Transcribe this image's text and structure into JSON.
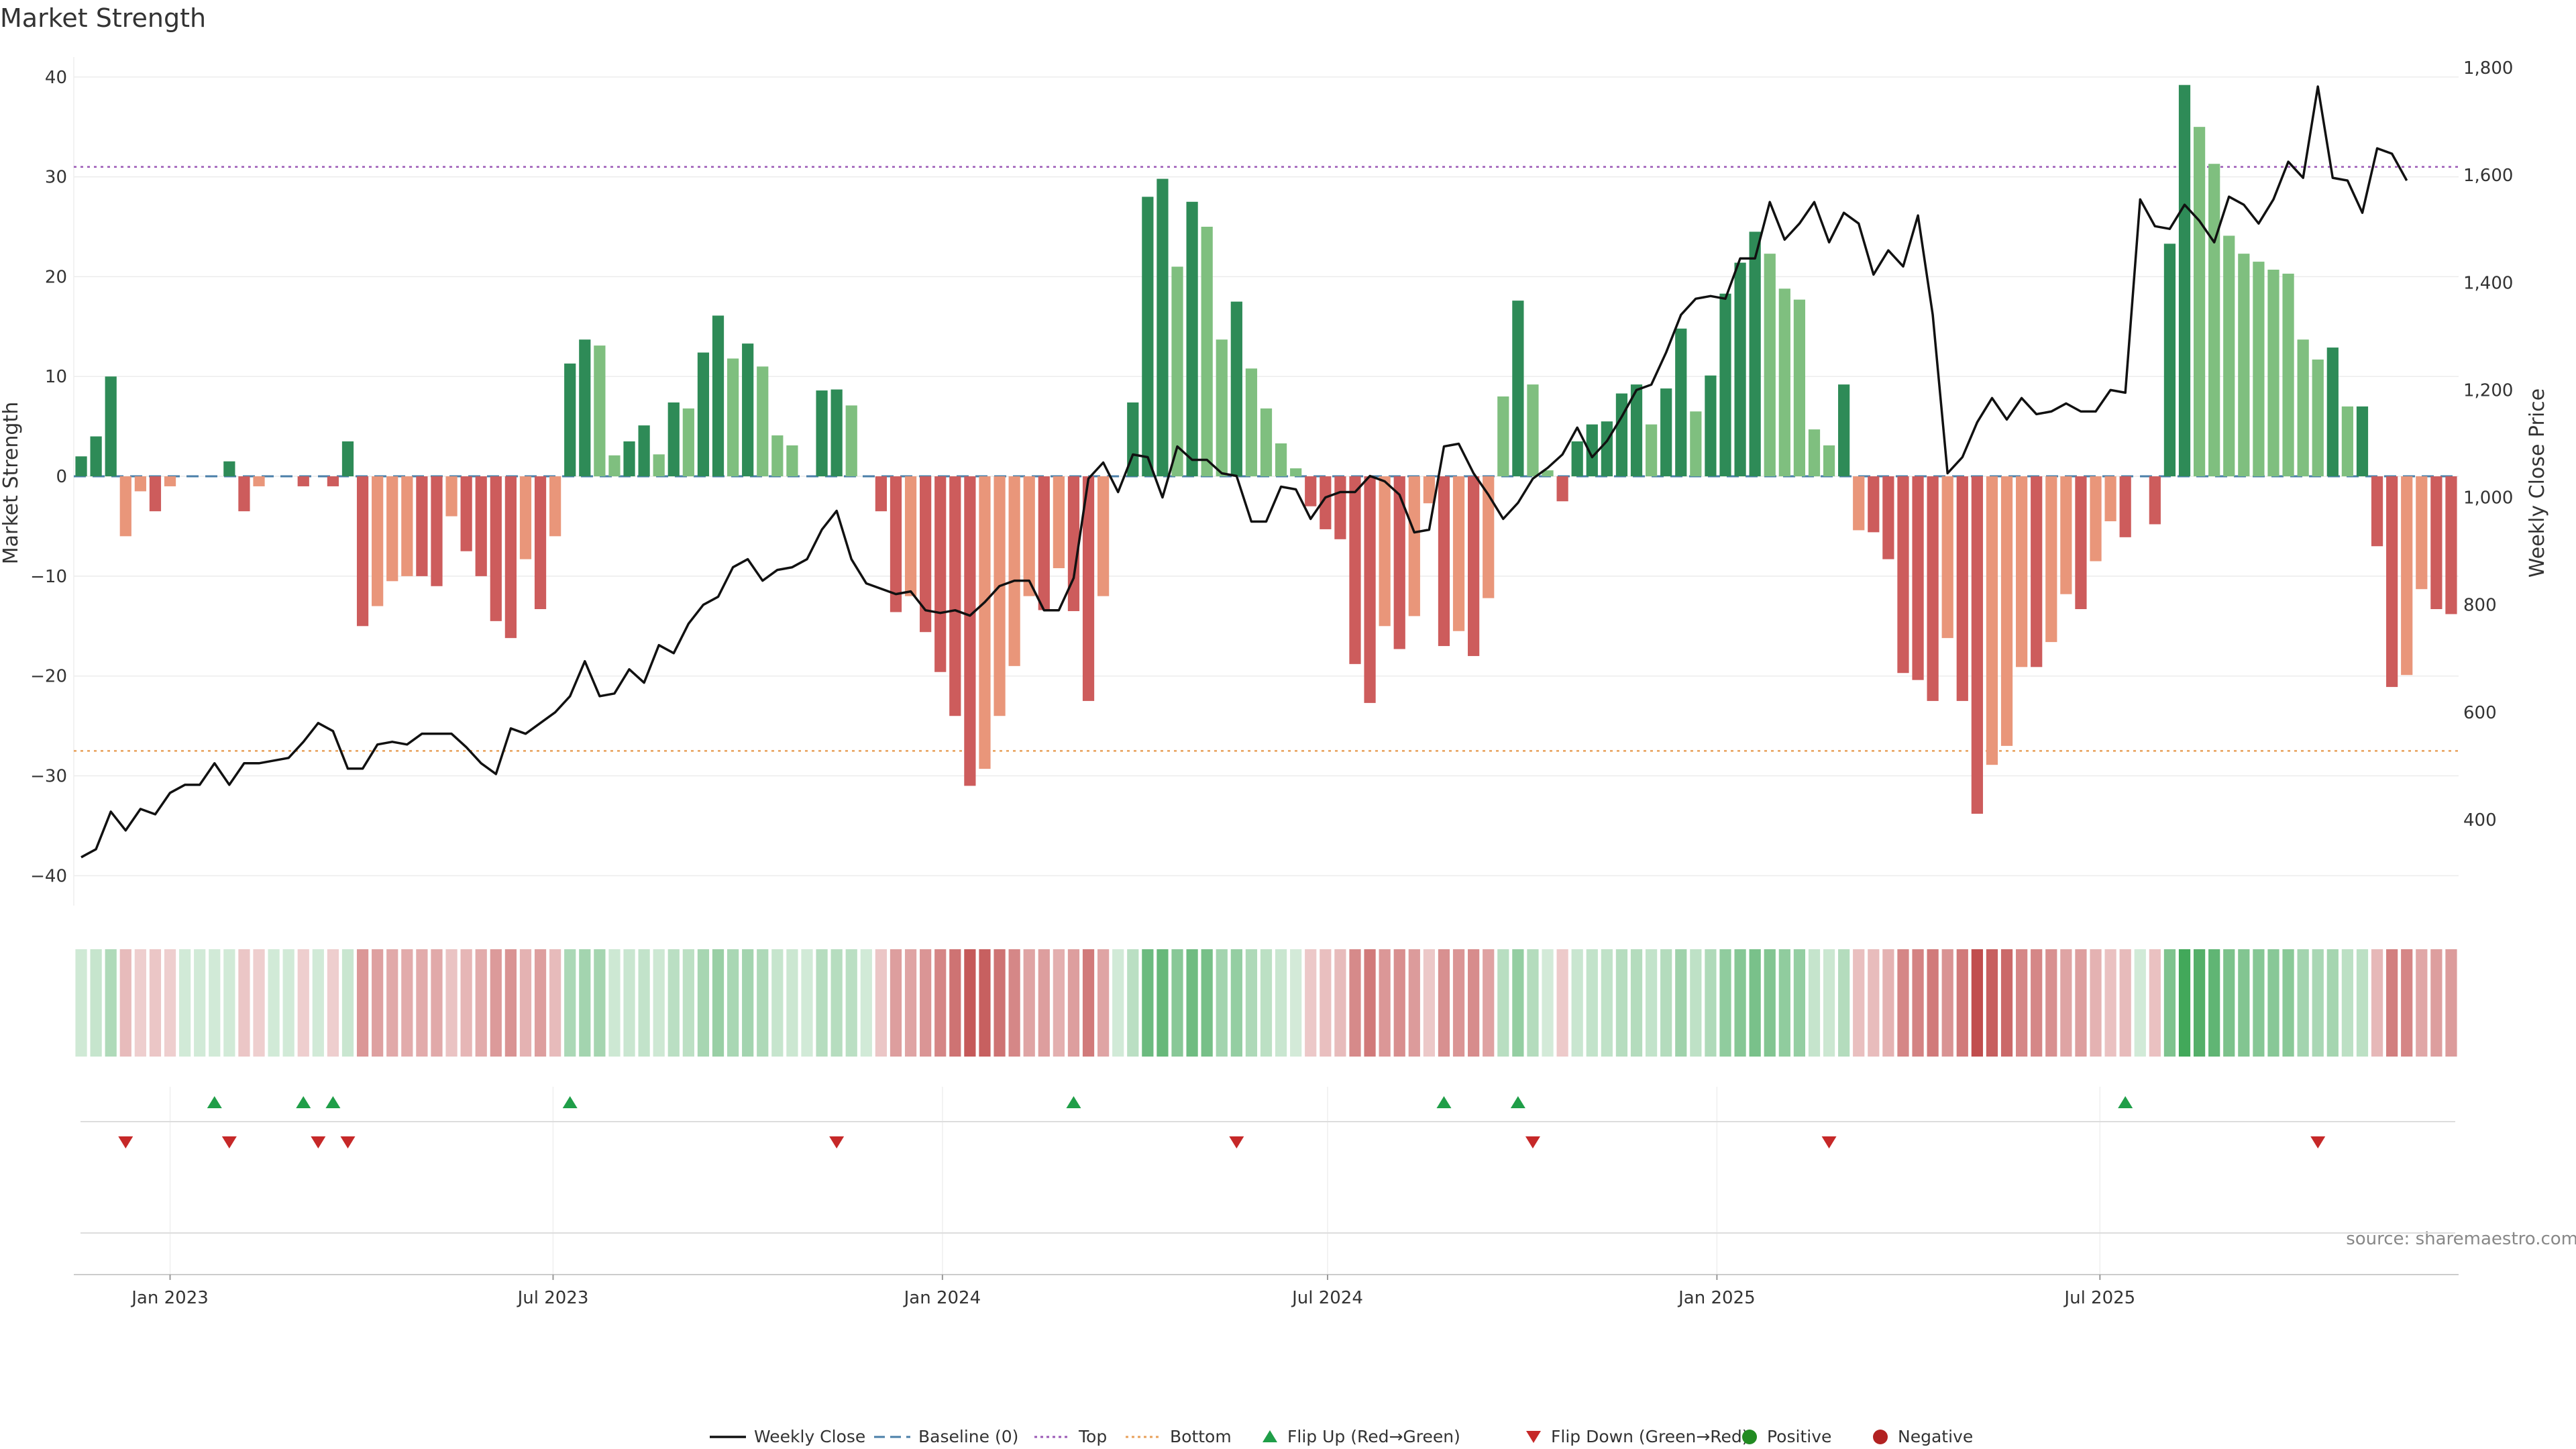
{
  "chart_data": {
    "type": "bar",
    "title": "Market Strength",
    "ylabel_left": "Market Strength",
    "ylabel_right": "Weekly Close Price",
    "ylim_left": [
      -43,
      42
    ],
    "ylim_right": [
      240,
      1820
    ],
    "left_ticks": [
      "40",
      "30",
      "20",
      "10",
      "0",
      "−10",
      "−20",
      "−30",
      "−40"
    ],
    "right_ticks": [
      "1,800",
      "1,600",
      "1,400",
      "1,200",
      "1,000",
      "800",
      "600",
      "400"
    ],
    "x_start_week": "2022-11-20",
    "x_ticks": [
      {
        "label": "Jan 2023",
        "date": "2023-01-01"
      },
      {
        "label": "Jul 2023",
        "date": "2023-07-01"
      },
      {
        "label": "Jan 2024",
        "date": "2024-01-01"
      },
      {
        "label": "Jul 2024",
        "date": "2024-07-01"
      },
      {
        "label": "Jan 2025",
        "date": "2025-01-01"
      },
      {
        "label": "Jul 2025",
        "date": "2025-07-01"
      }
    ],
    "top_line": 31,
    "bottom_line": -27.5,
    "strength": [
      2,
      4,
      10,
      -6,
      -1.5,
      -3.5,
      -1,
      0,
      0,
      0,
      1.5,
      -3.5,
      -1,
      0,
      0,
      -1,
      0,
      -1,
      3.5,
      -15,
      -13,
      -10.5,
      -10,
      -10,
      -11,
      -4,
      -7.5,
      -10,
      -14.5,
      -16.2,
      -8.3,
      -13.3,
      -6,
      11.3,
      13.7,
      13.1,
      2.1,
      3.5,
      5.1,
      2.2,
      7.4,
      6.8,
      12.4,
      16.1,
      11.8,
      13.3,
      11,
      4.1,
      3.1,
      0,
      8.6,
      8.7,
      7.1,
      0,
      -3.5,
      -13.6,
      -12,
      -15.6,
      -19.6,
      -24,
      -31,
      -29.3,
      -24,
      -19,
      -12,
      -13.4,
      -9.2,
      -13.5,
      -22.5,
      -12,
      0,
      7.4,
      28,
      29.8,
      21,
      27.5,
      25,
      13.7,
      17.5,
      10.8,
      6.8,
      3.3,
      0.8,
      -3,
      -5.3,
      -6.3,
      -18.8,
      -22.7,
      -15,
      -17.3,
      -14,
      -2.7,
      -17,
      -15.5,
      -18,
      -12.2,
      8,
      17.6,
      9.2,
      0.6,
      -2.5,
      3.5,
      5.2,
      5.5,
      8.3,
      9.2,
      5.2,
      8.8,
      14.8,
      6.5,
      10.1,
      18.3,
      21.4,
      24.5,
      22.3,
      18.8,
      17.7,
      4.7,
      3.1,
      9.2,
      -5.4,
      -5.6,
      -8.3,
      -19.7,
      -20.4,
      -22.5,
      -16.2,
      -22.5,
      -33.8,
      -28.9,
      -27,
      -19.1,
      -19.1,
      -16.6,
      -11.8,
      -13.3,
      -8.5,
      -4.5,
      -6.1,
      0,
      -4.8,
      23.3,
      39.2,
      35,
      31.3,
      24.1,
      22.3,
      21.5,
      20.7,
      20.3,
      13.7,
      11.7,
      12.9,
      7,
      7,
      -7,
      -21.1,
      -19.9,
      -11.3,
      -13.3,
      -13.8
    ],
    "price": [
      330,
      345,
      415,
      380,
      420,
      410,
      450,
      465,
      465,
      505,
      465,
      505,
      505,
      510,
      515,
      545,
      580,
      565,
      495,
      495,
      540,
      545,
      540,
      560,
      560,
      560,
      535,
      505,
      485,
      570,
      560,
      580,
      600,
      630,
      695,
      630,
      635,
      680,
      655,
      725,
      710,
      765,
      800,
      815,
      870,
      885,
      845,
      865,
      870,
      885,
      940,
      975,
      885,
      840,
      830,
      820,
      825,
      790,
      785,
      790,
      780,
      805,
      835,
      845,
      845,
      790,
      790,
      850,
      1035,
      1065,
      1010,
      1080,
      1075,
      1000,
      1095,
      1070,
      1070,
      1045,
      1040,
      955,
      955,
      1020,
      1015,
      960,
      1000,
      1010,
      1010,
      1040,
      1030,
      1005,
      935,
      940,
      1095,
      1100,
      1045,
      1005,
      960,
      990,
      1035,
      1055,
      1080,
      1130,
      1075,
      1105,
      1150,
      1200,
      1210,
      1270,
      1340,
      1370,
      1375,
      1370,
      1445,
      1445,
      1550,
      1480,
      1510,
      1550,
      1475,
      1530,
      1510,
      1415,
      1460,
      1430,
      1525,
      1340,
      1045,
      1075,
      1140,
      1185,
      1145,
      1185,
      1155,
      1160,
      1175,
      1160,
      1160,
      1200,
      1195,
      1555,
      1505,
      1500,
      1545,
      1515,
      1475,
      1560,
      1545,
      1510,
      1555,
      1625,
      1595,
      1765,
      1595,
      1590,
      1530,
      1650,
      1640,
      1590
    ],
    "flips_up": [
      9,
      15,
      17,
      33,
      67,
      92,
      97,
      138
    ],
    "flips_down": [
      3,
      10,
      16,
      18,
      51,
      78,
      98,
      118,
      151
    ],
    "legend": [
      {
        "label": "Weekly Close",
        "symbol": "solid-line",
        "color": "#111111"
      },
      {
        "label": "Baseline (0)",
        "symbol": "dashed-line",
        "color": "#4a7fa8"
      },
      {
        "label": "Top",
        "symbol": "dotted-line",
        "color": "#9b59b6"
      },
      {
        "label": "Bottom",
        "symbol": "dotted-line",
        "color": "#e8a05a"
      },
      {
        "label": "Flip Up (Red→Green)",
        "symbol": "triangle-up",
        "color": "#1f9e48"
      },
      {
        "label": "Flip Down (Green→Red)",
        "symbol": "triangle-down",
        "color": "#c62828"
      },
      {
        "label": "Positive",
        "symbol": "circle",
        "color": "#228b22"
      },
      {
        "label": "Negative",
        "symbol": "circle",
        "color": "#b22222"
      }
    ],
    "source": "source: sharemaestro.com",
    "colors": {
      "pos_dark": "#2e8b57",
      "pos_light": "#7fbf7f",
      "neg_dark": "#cd5c5c",
      "neg_light": "#e9967a",
      "price": "#111111",
      "top": "#9b59b6",
      "bottom": "#e8a05a",
      "baseline": "#4a7fa8"
    }
  }
}
